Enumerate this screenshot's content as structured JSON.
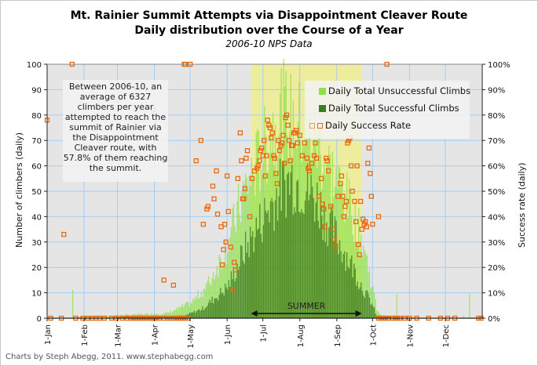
{
  "titles": {
    "line1": "Mt. Rainier Summit Attempts via Disappointment Cleaver Route",
    "line2": "Daily distribution over the Course of a Year",
    "subtitle": "2006-10 NPS Data"
  },
  "note": "Between 2006-10, an average of 6327 climbers per year attempted to reach the summit of Rainier via the Disappointment Cleaver route, with 57.8% of them reaching the summit.",
  "credit": "Charts by Steph Abegg, 2011. www.stephabegg.com",
  "colors": {
    "unsuccessful": "#8ee04a",
    "successful": "#3f7a1f",
    "success_rate": "#e86a10",
    "summer_band": "#f0ef90",
    "plot_bg": "#e5e5e5",
    "grid": "#a8cdf2"
  },
  "chart_data": {
    "type": "bar",
    "title": "Mt. Rainier Summit Attempts via Disappointment Cleaver Route — Daily distribution over the Course of a Year",
    "subtitle": "2006-10 NPS Data",
    "xlabel": "",
    "ylabel": "Number of climbers (daily)",
    "y2label": "Success rate (daily)",
    "ylim": [
      0,
      100
    ],
    "y2lim": [
      0,
      1
    ],
    "yticks": [
      "0",
      "10",
      "20",
      "30",
      "40",
      "50",
      "60",
      "70",
      "80",
      "90",
      "100"
    ],
    "y2ticks": [
      "0%",
      "10%",
      "20%",
      "30%",
      "40%",
      "50%",
      "60%",
      "70%",
      "80%",
      "90%",
      "100%"
    ],
    "xticks": [
      "1-Jan",
      "1-Feb",
      "1-Mar",
      "1-Apr",
      "1-May",
      "1-Jun",
      "1-Jul",
      "1-Aug",
      "1-Sep",
      "1-Oct",
      "1-Nov",
      "1-Dec"
    ],
    "xtick_days": [
      0,
      31,
      59,
      90,
      120,
      151,
      181,
      212,
      243,
      273,
      304,
      334
    ],
    "grid": true,
    "legend_position": "top-right",
    "legend": [
      "Daily Total Unsuccessful Climbs",
      "Daily Total Successful Climbs",
      "Daily Success Rate"
    ],
    "annotation": {
      "label": "SUMMER",
      "start_day": 171,
      "end_day": 264
    },
    "series_profile_note": "Daily values approximated from the figure: totals rise from ~0 in early May to a peak ~85 in mid-July and fall to ~0 by early October",
    "series": [
      {
        "name": "Daily Total (Unsuccessful + Successful) climbers",
        "type": "bar",
        "knots_day": [
          0,
          100,
          120,
          135,
          151,
          165,
          181,
          190,
          196,
          205,
          212,
          225,
          235,
          243,
          255,
          265,
          272,
          276,
          280,
          300,
          365
        ],
        "knots_value": [
          0,
          2,
          6,
          14,
          30,
          52,
          68,
          78,
          85,
          80,
          78,
          72,
          62,
          55,
          44,
          30,
          14,
          4,
          1,
          0,
          0
        ]
      },
      {
        "name": "Daily Total Successful Climbs",
        "type": "bar",
        "knots_day": [
          0,
          115,
          130,
          151,
          165,
          181,
          196,
          205,
          212,
          225,
          235,
          243,
          255,
          265,
          272,
          276,
          300,
          365
        ],
        "knots_value": [
          0,
          1,
          4,
          13,
          28,
          42,
          54,
          58,
          56,
          50,
          40,
          33,
          22,
          12,
          6,
          1,
          0,
          0
        ]
      },
      {
        "name": "Daily Success Rate",
        "type": "scatter",
        "points_day_pct": [
          [
            0,
            78
          ],
          [
            14,
            33
          ],
          [
            21,
            100
          ],
          [
            60,
            86
          ],
          [
            89,
            82
          ],
          [
            98,
            15
          ],
          [
            106,
            13
          ],
          [
            115,
            100
          ],
          [
            116,
            100
          ],
          [
            120,
            100
          ],
          [
            125,
            62
          ],
          [
            129,
            70
          ],
          [
            131,
            37
          ],
          [
            134,
            43
          ],
          [
            135,
            44
          ],
          [
            139,
            52
          ],
          [
            140,
            47
          ],
          [
            142,
            58
          ],
          [
            143,
            41
          ],
          [
            146,
            36
          ],
          [
            147,
            21
          ],
          [
            148,
            27
          ],
          [
            149,
            37
          ],
          [
            150,
            30
          ],
          [
            151,
            56
          ],
          [
            152,
            42
          ],
          [
            154,
            28
          ],
          [
            156,
            11
          ],
          [
            157,
            22
          ],
          [
            158,
            19
          ],
          [
            160,
            55
          ],
          [
            162,
            73
          ],
          [
            163,
            62
          ],
          [
            164,
            47
          ],
          [
            165,
            47
          ],
          [
            166,
            51
          ],
          [
            167,
            63
          ],
          [
            168,
            66
          ],
          [
            170,
            40
          ],
          [
            172,
            55
          ],
          [
            174,
            58
          ],
          [
            176,
            59
          ],
          [
            177,
            60
          ],
          [
            178,
            62
          ],
          [
            179,
            66
          ],
          [
            180,
            67
          ],
          [
            181,
            64
          ],
          [
            182,
            70
          ],
          [
            183,
            56
          ],
          [
            184,
            64
          ],
          [
            185,
            78
          ],
          [
            186,
            76
          ],
          [
            187,
            75
          ],
          [
            188,
            71
          ],
          [
            189,
            73
          ],
          [
            190,
            64
          ],
          [
            191,
            63
          ],
          [
            192,
            57
          ],
          [
            193,
            53
          ],
          [
            194,
            70
          ],
          [
            195,
            66
          ],
          [
            196,
            68
          ],
          [
            197,
            69
          ],
          [
            198,
            72
          ],
          [
            199,
            61
          ],
          [
            200,
            79
          ],
          [
            201,
            80
          ],
          [
            202,
            76
          ],
          [
            203,
            70
          ],
          [
            204,
            62
          ],
          [
            205,
            68
          ],
          [
            206,
            68
          ],
          [
            207,
            73
          ],
          [
            208,
            73
          ],
          [
            209,
            74
          ],
          [
            210,
            69
          ],
          [
            212,
            72
          ],
          [
            214,
            64
          ],
          [
            216,
            69
          ],
          [
            218,
            63
          ],
          [
            219,
            59
          ],
          [
            220,
            58
          ],
          [
            222,
            61
          ],
          [
            224,
            64
          ],
          [
            225,
            69
          ],
          [
            226,
            63
          ],
          [
            228,
            48
          ],
          [
            230,
            55
          ],
          [
            231,
            45
          ],
          [
            232,
            43
          ],
          [
            233,
            36
          ],
          [
            234,
            63
          ],
          [
            235,
            62
          ],
          [
            236,
            58
          ],
          [
            238,
            44
          ],
          [
            240,
            35
          ],
          [
            241,
            31
          ],
          [
            242,
            28
          ],
          [
            244,
            48
          ],
          [
            246,
            53
          ],
          [
            247,
            56
          ],
          [
            248,
            48
          ],
          [
            249,
            40
          ],
          [
            250,
            44
          ],
          [
            251,
            46
          ],
          [
            252,
            69
          ],
          [
            253,
            70
          ],
          [
            254,
            71
          ],
          [
            255,
            60
          ],
          [
            256,
            50
          ],
          [
            258,
            46
          ],
          [
            259,
            38
          ],
          [
            260,
            60
          ],
          [
            261,
            29
          ],
          [
            262,
            25
          ],
          [
            263,
            46
          ],
          [
            264,
            35
          ],
          [
            265,
            39
          ],
          [
            266,
            37
          ],
          [
            267,
            38
          ],
          [
            268,
            36
          ],
          [
            269,
            61
          ],
          [
            270,
            67
          ],
          [
            271,
            57
          ],
          [
            272,
            48
          ],
          [
            273,
            37
          ],
          [
            278,
            40
          ],
          [
            285,
            100
          ]
        ]
      }
    ]
  }
}
